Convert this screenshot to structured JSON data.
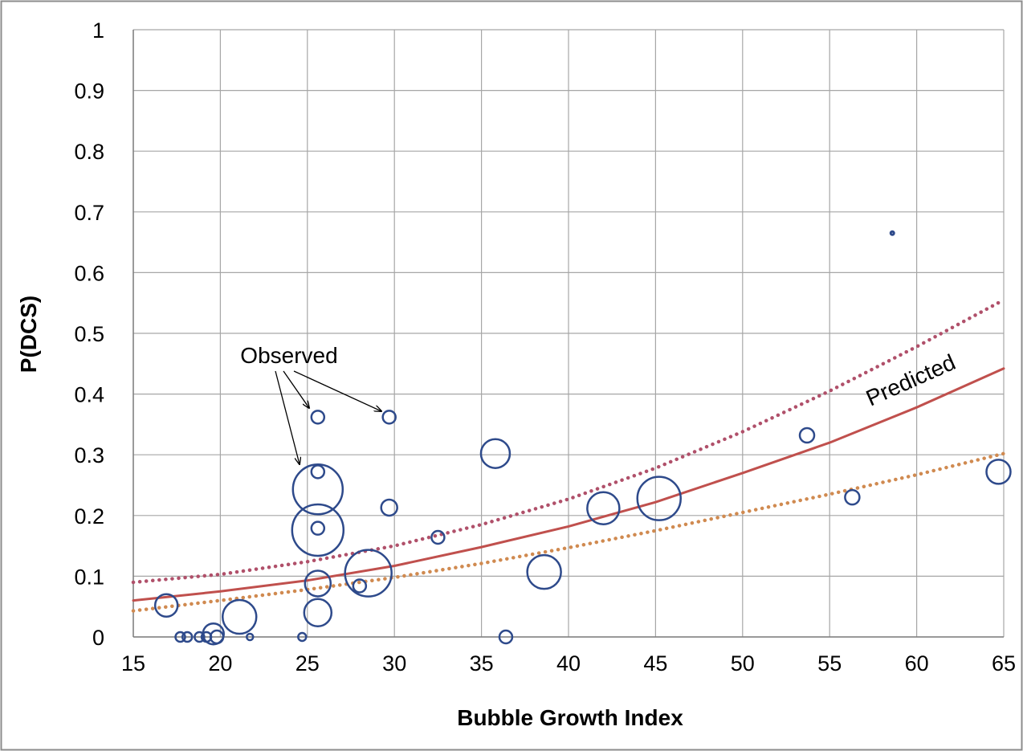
{
  "chart_data": {
    "type": "scatter",
    "xlabel": "Bubble Growth Index",
    "ylabel": "P(DCS)",
    "xlim": [
      15,
      65
    ],
    "ylim": [
      0,
      1
    ],
    "x_ticks": [
      "15",
      "20",
      "25",
      "30",
      "35",
      "40",
      "45",
      "50",
      "55",
      "60",
      "65"
    ],
    "y_ticks": [
      "0",
      "0.1",
      "0.2",
      "0.3",
      "0.4",
      "0.5",
      "0.6",
      "0.7",
      "0.8",
      "0.9",
      "1"
    ],
    "grid": true,
    "annotations": {
      "observed": "Observed",
      "predicted": "Predicted"
    },
    "colors": {
      "observed": "#2e4a8b",
      "predicted": "#c0504d",
      "upper_bound": "#b0506a",
      "lower_bound": "#d08a50",
      "grid": "#a6a6a6"
    },
    "observed_points": [
      {
        "x": 16.9,
        "y": 0.052,
        "size": 14
      },
      {
        "x": 17.7,
        "y": 0.0,
        "size": 6
      },
      {
        "x": 18.1,
        "y": 0.0,
        "size": 6
      },
      {
        "x": 18.8,
        "y": 0.0,
        "size": 6
      },
      {
        "x": 19.2,
        "y": 0.0,
        "size": 6
      },
      {
        "x": 19.6,
        "y": 0.005,
        "size": 13
      },
      {
        "x": 19.8,
        "y": 0.0,
        "size": 8
      },
      {
        "x": 21.1,
        "y": 0.033,
        "size": 21
      },
      {
        "x": 21.7,
        "y": 0.0,
        "size": 4
      },
      {
        "x": 24.7,
        "y": 0.0,
        "size": 5
      },
      {
        "x": 25.6,
        "y": 0.362,
        "size": 8
      },
      {
        "x": 25.6,
        "y": 0.272,
        "size": 8
      },
      {
        "x": 25.6,
        "y": 0.243,
        "size": 31
      },
      {
        "x": 25.6,
        "y": 0.179,
        "size": 8
      },
      {
        "x": 25.6,
        "y": 0.176,
        "size": 32
      },
      {
        "x": 25.6,
        "y": 0.088,
        "size": 16
      },
      {
        "x": 25.6,
        "y": 0.04,
        "size": 17
      },
      {
        "x": 28.0,
        "y": 0.084,
        "size": 8
      },
      {
        "x": 28.5,
        "y": 0.105,
        "size": 29
      },
      {
        "x": 29.7,
        "y": 0.362,
        "size": 8
      },
      {
        "x": 29.7,
        "y": 0.213,
        "size": 10
      },
      {
        "x": 32.5,
        "y": 0.164,
        "size": 8
      },
      {
        "x": 35.8,
        "y": 0.302,
        "size": 18
      },
      {
        "x": 36.4,
        "y": 0.0,
        "size": 8
      },
      {
        "x": 38.6,
        "y": 0.107,
        "size": 21
      },
      {
        "x": 42.0,
        "y": 0.212,
        "size": 20
      },
      {
        "x": 45.2,
        "y": 0.228,
        "size": 27
      },
      {
        "x": 53.7,
        "y": 0.332,
        "size": 9
      },
      {
        "x": 56.3,
        "y": 0.23,
        "size": 9
      },
      {
        "x": 58.6,
        "y": 0.665,
        "size": 2
      },
      {
        "x": 64.7,
        "y": 0.272,
        "size": 15
      }
    ],
    "series": [
      {
        "style": "solid",
        "x": [
          15,
          20,
          25,
          30,
          35,
          40,
          45,
          50,
          55,
          60,
          65
        ],
        "values": [
          0.06,
          0.075,
          0.093,
          0.117,
          0.148,
          0.182,
          0.222,
          0.27,
          0.32,
          0.378,
          0.442
        ]
      },
      {
        "style": "dotted",
        "x": [
          15,
          20,
          25,
          30,
          35,
          40,
          45,
          50,
          55,
          60,
          65
        ],
        "values": [
          0.09,
          0.103,
          0.124,
          0.15,
          0.185,
          0.227,
          0.278,
          0.338,
          0.405,
          0.478,
          0.555
        ]
      },
      {
        "style": "dotted",
        "x": [
          15,
          20,
          25,
          30,
          35,
          40,
          45,
          50,
          55,
          60,
          65
        ],
        "values": [
          0.043,
          0.06,
          0.078,
          0.098,
          0.121,
          0.147,
          0.175,
          0.205,
          0.235,
          0.267,
          0.302
        ]
      }
    ]
  }
}
